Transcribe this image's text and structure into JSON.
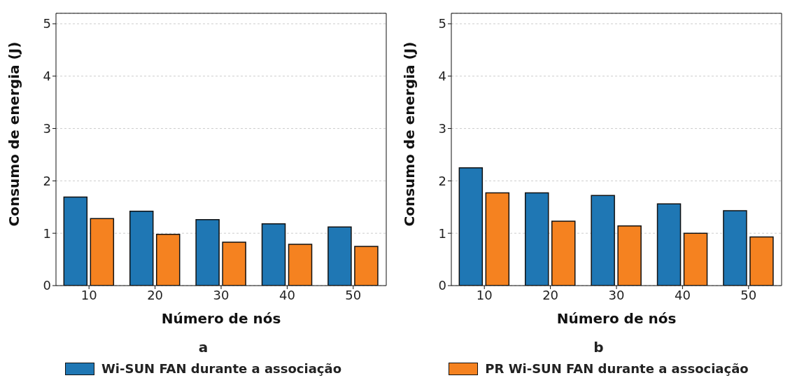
{
  "chart_data": [
    {
      "type": "bar",
      "title": "a",
      "xlabel": "Número de nós",
      "ylabel": "Consumo de energia (J)",
      "categories": [
        "10",
        "20",
        "30",
        "40",
        "50"
      ],
      "series": [
        {
          "name": "Wi-SUN FAN durante a associação",
          "color": "#1f77b4",
          "values": [
            1.69,
            1.42,
            1.26,
            1.18,
            1.12
          ]
        },
        {
          "color": "#f58220",
          "values": [
            1.28,
            0.98,
            0.83,
            0.79,
            0.75
          ]
        }
      ],
      "ylim": [
        0,
        5.2
      ],
      "yticks": [
        0,
        1,
        2,
        3,
        4,
        5
      ],
      "grid": "y",
      "legend": "bottom"
    },
    {
      "type": "bar",
      "title": "b",
      "xlabel": "Número de nós",
      "ylabel": "Consumo de energia (J)",
      "categories": [
        "10",
        "20",
        "30",
        "40",
        "50"
      ],
      "series": [
        {
          "color": "#1f77b4",
          "values": [
            2.25,
            1.77,
            1.72,
            1.56,
            1.43
          ]
        },
        {
          "name": "PR Wi-SUN FAN durante a associação",
          "color": "#f58220",
          "values": [
            1.77,
            1.23,
            1.14,
            1.0,
            0.93
          ]
        }
      ],
      "ylim": [
        0,
        5.2
      ],
      "yticks": [
        0,
        1,
        2,
        3,
        4,
        5
      ],
      "grid": "y",
      "legend": "bottom"
    }
  ]
}
